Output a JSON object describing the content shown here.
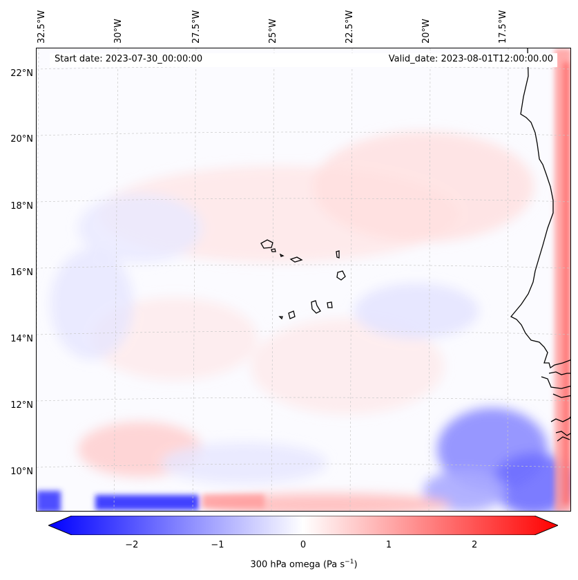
{
  "map": {
    "start_date_text": "Start date: 2023-07-30_00:00:00",
    "valid_date_text": "Valid_date: 2023-08-01T12:00:00.00",
    "longitude_labels": [
      "32.5°W",
      "30°W",
      "27.5°W",
      "25°W",
      "22.5°W",
      "20°W",
      "17.5°W"
    ],
    "latitude_labels": [
      "22°N",
      "20°N",
      "18°N",
      "16°N",
      "14°N",
      "12°N",
      "10°N"
    ],
    "features": [
      "cape-verde-islands",
      "west-africa-coastline"
    ]
  },
  "colorbar": {
    "label": "300 hPa omega (Pa s",
    "label_sup": "−1",
    "label_end": ")",
    "ticks": [
      "−2",
      "−1",
      "0",
      "1",
      "2"
    ],
    "tick_values": [
      -2,
      -1,
      0,
      1,
      2
    ],
    "range": [
      -2.7,
      2.7
    ],
    "colors": {
      "min": "#0000ff",
      "mid": "#ffffff",
      "max": "#ff0000"
    }
  }
}
